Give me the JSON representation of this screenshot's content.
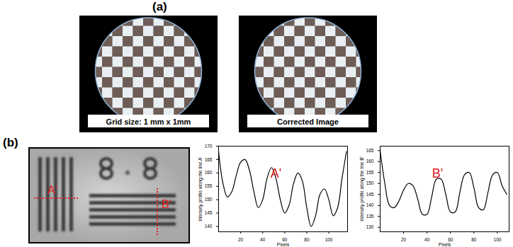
{
  "panel_a": {
    "label": "(a)",
    "images": [
      {
        "caption": "Grid size: 1 mm x 1mm"
      },
      {
        "caption": "Corrected Image"
      }
    ]
  },
  "panel_b": {
    "label": "(b)",
    "image": {
      "line_labels": [
        "A'",
        "B'"
      ]
    }
  },
  "chart_data": [
    {
      "type": "line",
      "title": "A'",
      "x_label": "Pixels",
      "y_label": "Intensity profile along the line A'",
      "color": "#000000",
      "x": [
        0,
        4,
        8,
        12,
        16,
        20,
        24,
        28,
        32,
        36,
        40,
        44,
        48,
        52,
        56,
        60,
        64,
        68,
        72,
        76,
        80,
        84,
        88,
        92,
        96,
        100,
        104,
        108,
        112,
        116
      ],
      "values": [
        168,
        156,
        151,
        153,
        159,
        164,
        165,
        161,
        153,
        147,
        150,
        158,
        162,
        158,
        150,
        145,
        148,
        156,
        160,
        157,
        147,
        140,
        144,
        152,
        154,
        150,
        144,
        147,
        158,
        168
      ],
      "xlim": [
        0,
        117
      ],
      "ylim": [
        138,
        170
      ],
      "xticks": [
        20,
        40,
        60,
        80,
        100
      ],
      "yticks": [
        140,
        145,
        150,
        155,
        160,
        165,
        170
      ]
    },
    {
      "type": "line",
      "title": "B'",
      "x_label": "Pixels",
      "y_label": "Intensity profile along the line B'",
      "color": "#000000",
      "x": [
        0,
        4,
        8,
        12,
        16,
        20,
        24,
        28,
        32,
        36,
        40,
        44,
        48,
        52,
        56,
        60,
        64,
        68,
        72,
        76,
        80,
        84,
        88,
        92,
        96,
        100,
        104,
        108
      ],
      "values": [
        165,
        150,
        140,
        139,
        142,
        147,
        150,
        149,
        143,
        136,
        136,
        144,
        152,
        152,
        145,
        137,
        137,
        146,
        154,
        155,
        148,
        139,
        138,
        146,
        154,
        155,
        149,
        145
      ],
      "xlim": [
        0,
        110
      ],
      "ylim": [
        128,
        167
      ],
      "xticks": [
        20,
        40,
        60,
        80,
        100
      ],
      "yticks": [
        130,
        135,
        140,
        145,
        150,
        155,
        160,
        165
      ]
    }
  ]
}
